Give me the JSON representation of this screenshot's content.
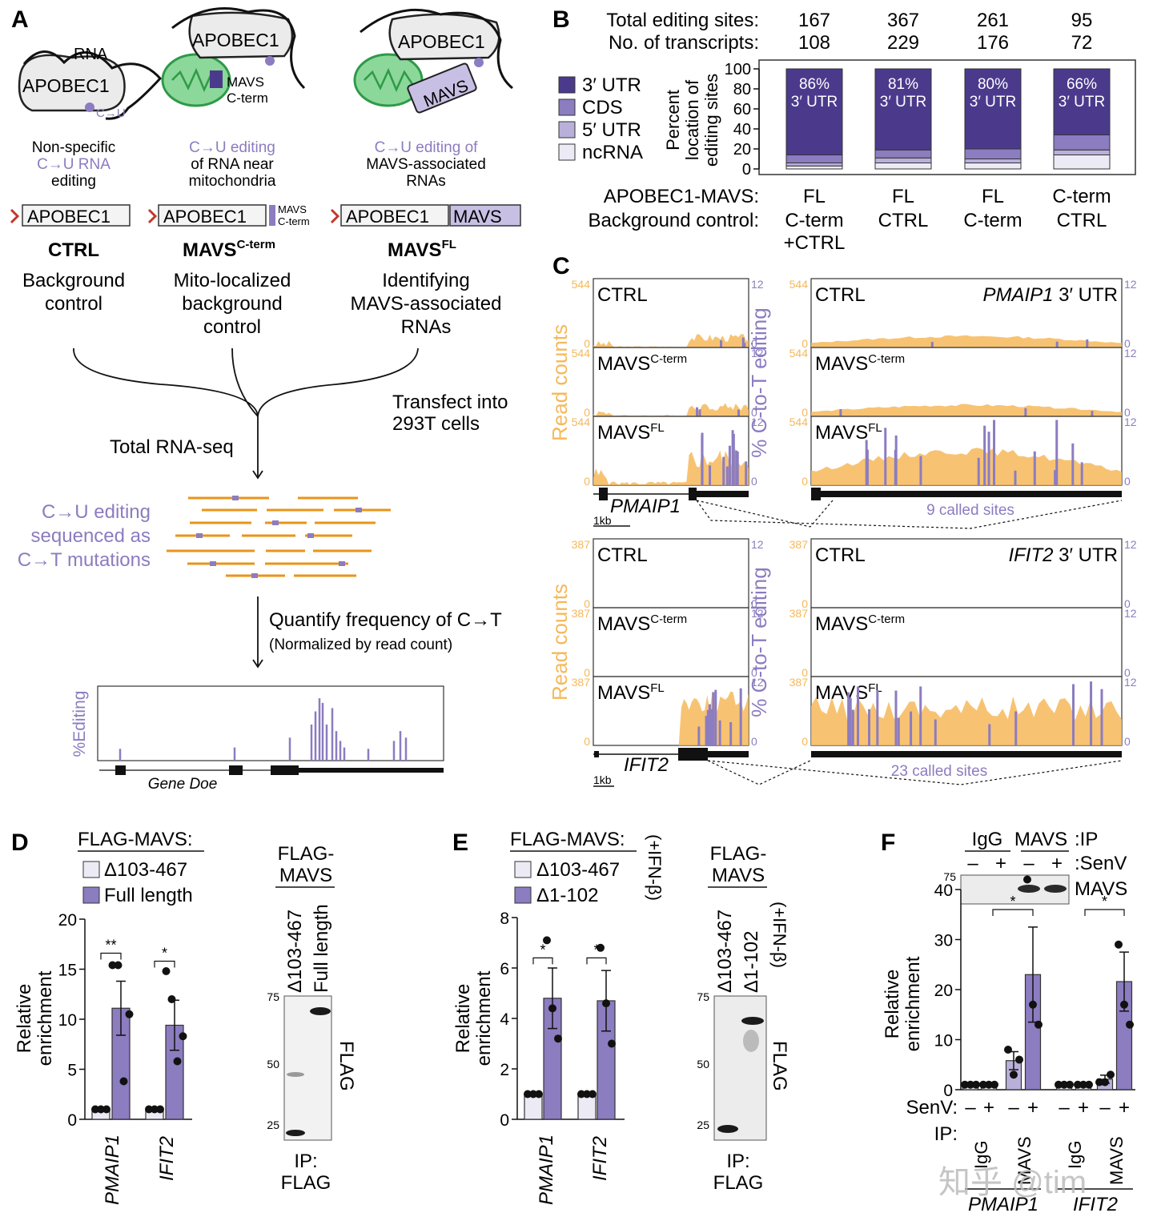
{
  "colors": {
    "purple_dark": "#4b3a8c",
    "purple_mid": "#8c7cc0",
    "purple_light": "#b9b0da",
    "very_light": "#ecebf5",
    "orange": "#f6b85a",
    "read_orange": "#f0a830",
    "mito_green": "#2e9a48",
    "mito_fill": "#8cd79a",
    "gray_shape": "#ebebeb"
  },
  "panelA": {
    "letter": "A",
    "rna_word": "RNA",
    "apobec": "APOBEC1",
    "cu": "C→U",
    "mavs_cterm_l1": "MAVS",
    "mavs_cterm_l2": "C-term",
    "mavs_box": "MAVS",
    "desc1": [
      "Non-specific",
      "C→U RNA",
      "editing"
    ],
    "desc2": [
      "C→U editing",
      "of RNA near",
      "mitochondria"
    ],
    "desc3": [
      "C→U editing of",
      "MAVS-associated",
      "RNAs"
    ],
    "name1": "CTRL",
    "name2": "MAVS",
    "name2_sup": "C-term",
    "name3": "MAVS",
    "name3_sup": "FL",
    "role1": [
      "Background",
      "control"
    ],
    "role2": [
      "Mito-localized",
      "background",
      "control"
    ],
    "role3": [
      "Identifying",
      "MAVS-associated",
      "RNAs"
    ],
    "transfect": [
      "Transfect into",
      "293T cells"
    ],
    "total_rnaseq": "Total RNA-seq",
    "seq_label": [
      "C→U editing",
      "sequenced as",
      "C→T mutations"
    ],
    "quantify": "Quantify frequency of C→T",
    "normalized": "(Normalized by read count)",
    "editing_axis": "%Editing",
    "gene": "Gene Doe",
    "editing_bars": [
      0.18,
      0.2,
      0.35,
      0.55,
      0.75,
      0.95,
      0.88,
      0.55,
      0.8,
      0.45,
      0.3,
      0.2,
      0.18,
      0.3,
      0.45,
      0.35
    ]
  },
  "panelB": {
    "letter": "B",
    "row1_label": "Total editing sites:",
    "row2_label": "No. of transcripts:",
    "totals": [
      "167",
      "367",
      "261",
      "95"
    ],
    "transcripts": [
      "108",
      "229",
      "176",
      "72"
    ],
    "legend": [
      "3′ UTR",
      "CDS",
      "5′ UTR",
      "ncRNA"
    ],
    "yaxis": [
      "Percent",
      "location of",
      "editing sites"
    ],
    "yticks": [
      "100",
      "80",
      "60",
      "40",
      "20",
      "0"
    ],
    "pct_labels": [
      "86%",
      "81%",
      "80%",
      "66%"
    ],
    "pct_sub": "3′ UTR",
    "row3_label": "APOBEC1-MAVS:",
    "row4_label": "Background control:",
    "fusion": [
      "FL",
      "FL",
      "FL",
      "C-term"
    ],
    "control_line1": [
      "C-term",
      "CTRL",
      "C-term",
      "CTRL"
    ],
    "control_line2": [
      "+CTRL",
      "",
      "",
      ""
    ],
    "chart_data": {
      "type": "bar",
      "stacked": true,
      "categories": [
        "FL vs C-term+CTRL",
        "FL vs CTRL",
        "FL vs C-term",
        "C-term vs CTRL"
      ],
      "series": [
        {
          "name": "ncRNA",
          "values": [
            3,
            6,
            6,
            14
          ]
        },
        {
          "name": "5′ UTR",
          "values": [
            3,
            5,
            4,
            5
          ]
        },
        {
          "name": "CDS",
          "values": [
            8,
            8,
            10,
            15
          ]
        },
        {
          "name": "3′ UTR",
          "values": [
            86,
            81,
            80,
            66
          ]
        }
      ],
      "ylabel": "Percent location of editing sites",
      "ylim": [
        0,
        100
      ]
    }
  },
  "panelC": {
    "letter": "C",
    "read_counts": "Read counts",
    "pct_editing": "% C-to-T editing",
    "tracks": [
      "CTRL",
      "MAVS",
      "MAVS"
    ],
    "track_sups": [
      "",
      "C-term",
      "FL"
    ],
    "top_max": "544",
    "bottom_max": "387",
    "right_max": "12",
    "zero": "0",
    "top_region": [
      "PMAIP1",
      " 3′ UTR"
    ],
    "bottom_region": [
      "IFIT2",
      " 3′ UTR"
    ],
    "top_gene": "PMAIP1",
    "bottom_gene": "IFIT2",
    "top_called": "9 called sites",
    "bottom_called": "23 called sites",
    "scale": "1kb"
  },
  "panelD": {
    "letter": "D",
    "title": "FLAG-MAVS:",
    "legend": [
      "Δ103-467",
      "Full length"
    ],
    "ylabel": [
      "Relative",
      "enrichment"
    ],
    "yticks": [
      "20",
      "15",
      "10",
      "5",
      "0"
    ],
    "genes": [
      "PMAIP1",
      "IFIT2"
    ],
    "sig": [
      "**",
      "*"
    ],
    "blot_title": [
      "FLAG-",
      "MAVS"
    ],
    "lane_labels": [
      "Δ103-467",
      "Full length"
    ],
    "mw": [
      "75",
      "50",
      "25"
    ],
    "antibody": "FLAG",
    "ip": [
      "IP:",
      "FLAG"
    ],
    "chart_data": {
      "type": "bar",
      "categories": [
        "PMAIP1",
        "IFIT2"
      ],
      "series": [
        {
          "name": "Δ103-467",
          "values": [
            1,
            1
          ],
          "points": [
            [
              1,
              1,
              1
            ],
            [
              1,
              1,
              1
            ]
          ]
        },
        {
          "name": "Full length",
          "values": [
            11.1,
            9.4
          ],
          "sem": [
            2.7,
            2.5
          ],
          "points": [
            [
              15.4,
              15.4,
              3.8,
              10.5
            ],
            [
              14.8,
              12.0,
              5.8,
              8.3
            ]
          ]
        }
      ],
      "ylabel": "Relative enrichment",
      "ylim": [
        0,
        20
      ]
    }
  },
  "panelE": {
    "letter": "E",
    "title": "FLAG-MAVS:",
    "legend": [
      "Δ103-467",
      "Δ1-102"
    ],
    "ifn": "(+IFN-β)",
    "ylabel": [
      "Relative",
      "enrichment"
    ],
    "yticks": [
      "8",
      "6",
      "4",
      "2",
      "0"
    ],
    "genes": [
      "PMAIP1",
      "IFIT2"
    ],
    "sig": [
      "*",
      "*"
    ],
    "blot_title": [
      "FLAG-",
      "MAVS"
    ],
    "lane_labels": [
      "Δ103-467",
      "Δ1-102"
    ],
    "mw": [
      "75",
      "50",
      "25"
    ],
    "antibody": "FLAG",
    "ip": [
      "IP:",
      "FLAG"
    ],
    "chart_data": {
      "type": "bar",
      "categories": [
        "PMAIP1",
        "IFIT2"
      ],
      "series": [
        {
          "name": "Δ103-467",
          "values": [
            1,
            1
          ],
          "points": [
            [
              1,
              1,
              1
            ],
            [
              1,
              1,
              1
            ]
          ]
        },
        {
          "name": "Δ1-102",
          "values": [
            4.8,
            4.7
          ],
          "sem": [
            1.2,
            1.2
          ],
          "points": [
            [
              7.1,
              4.4,
              3.2
            ],
            [
              6.8,
              4.6,
              3.0
            ]
          ]
        }
      ],
      "ylabel": "Relative enrichment",
      "ylim": [
        0,
        8
      ]
    }
  },
  "panelF": {
    "letter": "F",
    "ip_header": [
      "IgG",
      "MAVS",
      ":IP"
    ],
    "senv_header": ":SenV",
    "signs": [
      "–",
      "+",
      "–",
      "+"
    ],
    "mw": "75",
    "antibody": "MAVS",
    "ylabel": [
      "Relative",
      "enrichment"
    ],
    "yticks": [
      "40",
      "30",
      "20",
      "10",
      "0"
    ],
    "senv_label": "SenV:",
    "ip_label": "IP:",
    "ip_groups": [
      "IgG",
      "MAVS",
      "IgG",
      "MAVS"
    ],
    "genes": [
      "PMAIP1",
      "IFIT2"
    ],
    "sig": [
      "*",
      "*"
    ],
    "watermark": "知乎 @tim",
    "chart_data": {
      "type": "bar",
      "categories": [
        "PMAIP1 IgG –",
        "PMAIP1 IgG +",
        "PMAIP1 MAVS –",
        "PMAIP1 MAVS +",
        "IFIT2 IgG –",
        "IFIT2 IgG +",
        "IFIT2 MAVS –",
        "IFIT2 MAVS +"
      ],
      "values": [
        1,
        1,
        5.8,
        23,
        1,
        1,
        2.1,
        21.6
      ],
      "sem": [
        0,
        0,
        1.8,
        9.5,
        0,
        0,
        0.8,
        5.9
      ],
      "ylabel": "Relative enrichment",
      "ylim": [
        0,
        40
      ]
    }
  }
}
